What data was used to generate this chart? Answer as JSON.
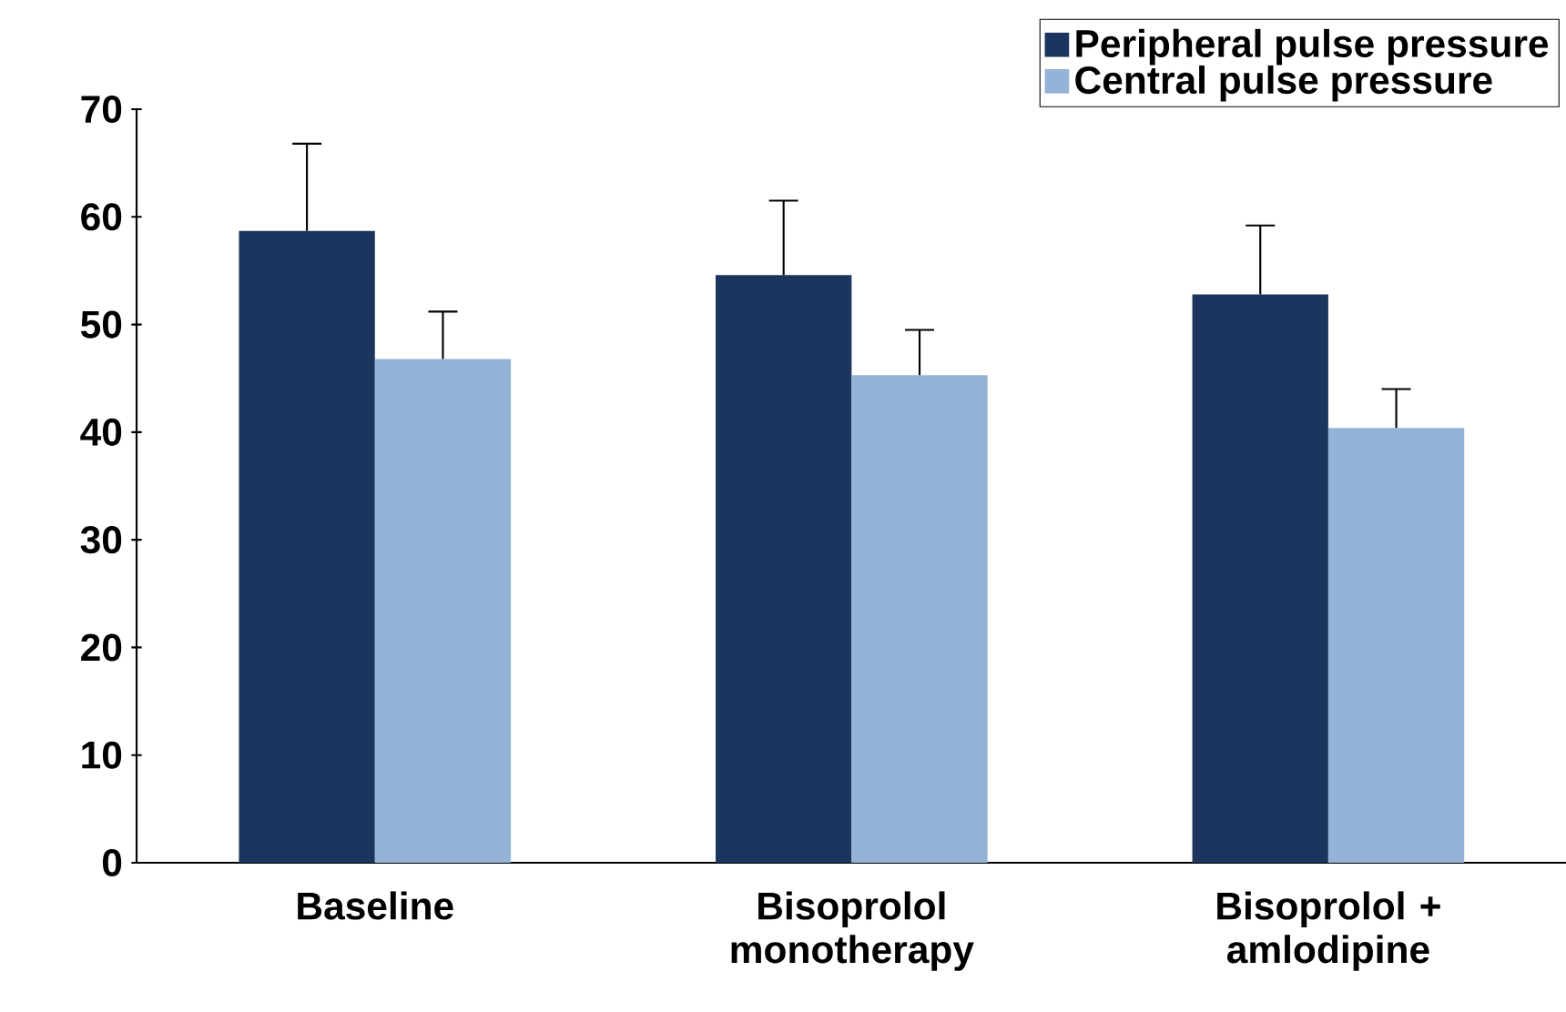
{
  "chart_data": {
    "type": "bar",
    "categories": [
      "Baseline",
      "Bisoprolol monotherapy",
      "Bisoprolol + amlodipine"
    ],
    "series": [
      {
        "name": "Peripheral pulse pressure",
        "color": "#1c355e",
        "values": [
          58.7,
          54.6,
          52.8
        ],
        "errors": [
          [
            58.7,
            66.8
          ],
          [
            54.6,
            61.5
          ],
          [
            52.8,
            59.2
          ]
        ]
      },
      {
        "name": "Central pulse pressure",
        "color": "#95b3d7",
        "values": [
          46.8,
          45.3,
          40.4
        ],
        "errors": [
          [
            46.8,
            51.2
          ],
          [
            45.3,
            49.5
          ],
          [
            40.4,
            44.0
          ]
        ]
      }
    ],
    "ylim": [
      0,
      70
    ],
    "yticks": [
      0,
      10,
      20,
      30,
      40,
      50,
      60,
      70
    ],
    "grid": false,
    "legend": "top right"
  }
}
